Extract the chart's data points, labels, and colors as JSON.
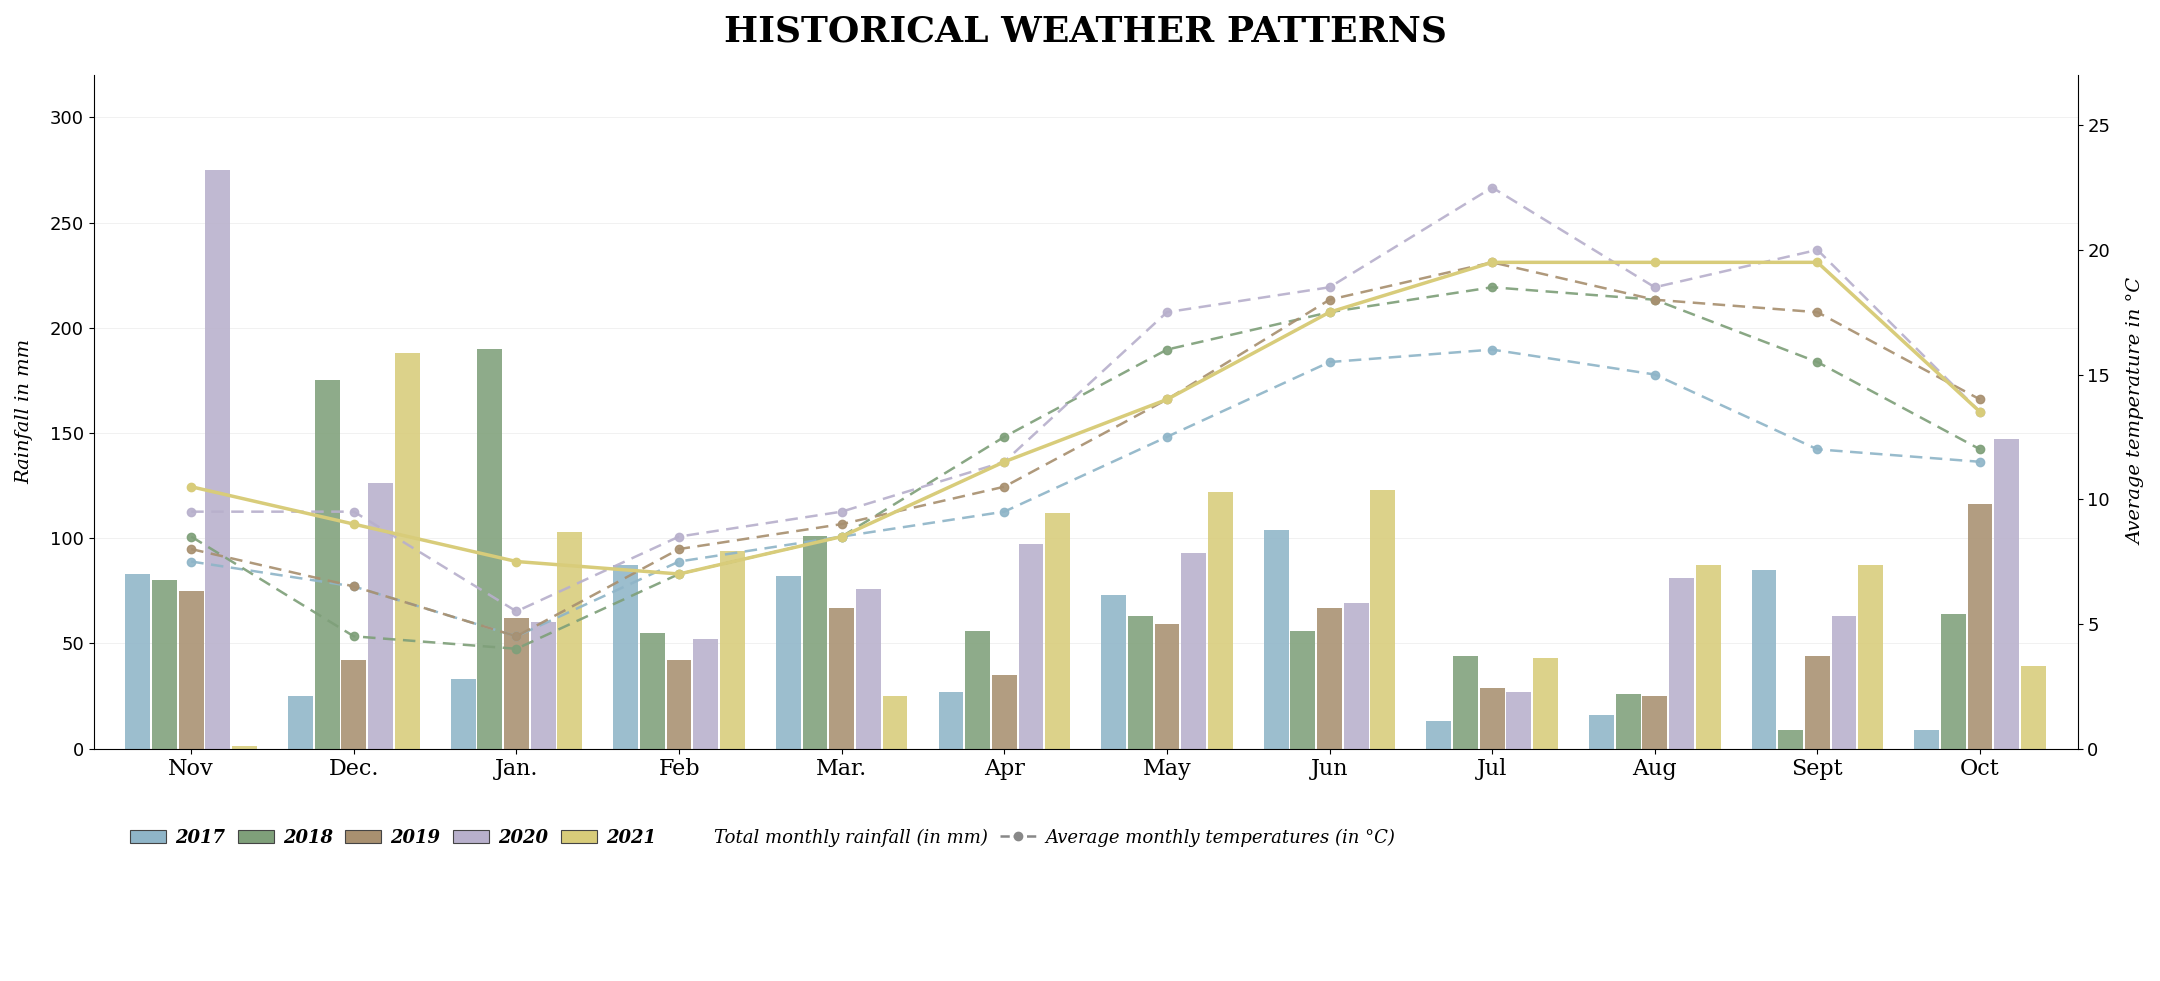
{
  "title": "HISTORICAL WEATHER PATTERNS",
  "months": [
    "Nov",
    "Dec.",
    "Jan.",
    "Feb",
    "Mar.",
    "Apr",
    "May",
    "Jun",
    "Jul",
    "Aug",
    "Sept",
    "Oct"
  ],
  "years": [
    "2017",
    "2018",
    "2019",
    "2020",
    "2021"
  ],
  "bar_colors": [
    "#8fb5c8",
    "#7fa07a",
    "#a89070",
    "#b8b0cc",
    "#d8cc7a"
  ],
  "bar_data": {
    "2017": [
      83,
      25,
      33,
      87,
      82,
      27,
      73,
      104,
      13,
      16,
      85,
      9
    ],
    "2018": [
      80,
      175,
      190,
      55,
      101,
      56,
      63,
      56,
      44,
      26,
      9,
      64
    ],
    "2019": [
      75,
      42,
      62,
      42,
      67,
      35,
      59,
      67,
      29,
      25,
      44,
      116
    ],
    "2020": [
      275,
      126,
      60,
      52,
      76,
      97,
      93,
      69,
      27,
      81,
      63,
      147
    ],
    "2021": [
      1,
      188,
      103,
      94,
      25,
      112,
      122,
      123,
      43,
      87,
      87,
      39
    ]
  },
  "temp_data": {
    "2017": [
      7.5,
      6.5,
      4.5,
      7.5,
      8.5,
      9.5,
      12.5,
      15.5,
      16.0,
      15.0,
      12.0,
      11.5
    ],
    "2018": [
      8.5,
      4.5,
      4.0,
      7.0,
      8.5,
      12.5,
      16.0,
      17.5,
      18.5,
      18.0,
      15.5,
      12.0
    ],
    "2019": [
      8.0,
      6.5,
      4.5,
      8.0,
      9.0,
      10.5,
      14.0,
      18.0,
      19.5,
      18.0,
      17.5,
      14.0
    ],
    "2020": [
      9.5,
      9.5,
      5.5,
      8.5,
      9.5,
      11.5,
      17.5,
      18.5,
      22.5,
      18.5,
      20.0,
      13.5
    ],
    "2021": [
      10.5,
      9.0,
      7.5,
      7.0,
      8.5,
      11.5,
      14.0,
      17.5,
      19.5,
      19.5,
      19.5,
      13.5
    ]
  },
  "ylabel_left": "Rainfall in mm",
  "ylabel_right": "Average temperature in °C",
  "ylim_left": [
    0,
    320
  ],
  "ylim_right": [
    0,
    27
  ],
  "yticks_left": [
    0,
    50,
    100,
    150,
    200,
    250,
    300
  ],
  "yticks_right": [
    0,
    5,
    10,
    15,
    20,
    25
  ],
  "legend_rainfall": "Total monthly rainfall (in mm)",
  "legend_temp": "Average monthly temperatures (in °C)",
  "background_color": "#ffffff",
  "title_fontsize": 26,
  "axis_label_fontsize": 13
}
